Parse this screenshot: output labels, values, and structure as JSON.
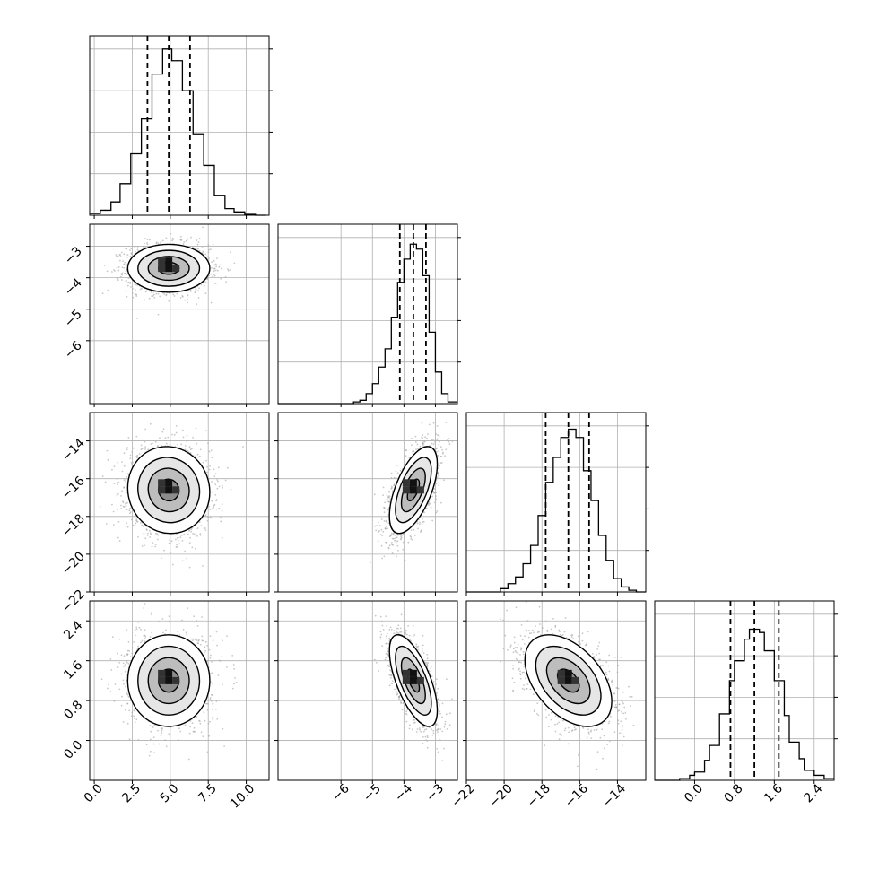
{
  "chart_data": {
    "type": "corner",
    "parameters": [
      {
        "name": "",
        "range": [
          -0.3,
          11.5
        ],
        "ticks": [
          0.0,
          2.5,
          5.0,
          7.5,
          10.0
        ],
        "tick_labels": [
          "0.0",
          "2.5",
          "5.0",
          "7.5",
          "10.0"
        ],
        "quantiles": [
          3.5,
          4.9,
          6.3
        ],
        "hist_edges": [
          -0.3,
          0.4,
          1.1,
          1.7,
          2.4,
          3.1,
          3.8,
          4.5,
          5.1,
          5.8,
          6.5,
          7.2,
          7.9,
          8.6,
          9.2,
          9.9,
          10.6,
          11.3
        ],
        "hist_counts": [
          0.01,
          0.03,
          0.08,
          0.19,
          0.37,
          0.58,
          0.85,
          1.0,
          0.93,
          0.75,
          0.49,
          0.3,
          0.12,
          0.04,
          0.02,
          0.005,
          0.0
        ]
      },
      {
        "name": "",
        "range": [
          -8.0,
          -2.3
        ],
        "ticks": [
          -6,
          -5,
          -4,
          -3
        ],
        "tick_labels": [
          "−6",
          "−5",
          "−4",
          "−3"
        ],
        "quantiles": [
          -4.13,
          -3.7,
          -3.3
        ],
        "hist_edges": [
          -8.0,
          -5.6,
          -5.4,
          -5.2,
          -5.0,
          -4.8,
          -4.6,
          -4.4,
          -4.2,
          -4.0,
          -3.8,
          -3.6,
          -3.4,
          -3.2,
          -3.0,
          -2.8,
          -2.6,
          -2.3
        ],
        "hist_counts": [
          0.0,
          0.01,
          0.02,
          0.06,
          0.12,
          0.22,
          0.33,
          0.52,
          0.73,
          0.87,
          0.96,
          0.93,
          0.77,
          0.43,
          0.19,
          0.06,
          0.01
        ]
      },
      {
        "name": "",
        "range": [
          -22.0,
          -12.5
        ],
        "ticks": [
          -22,
          -20,
          -18,
          -16,
          -14
        ],
        "tick_labels": [
          "−22",
          "−20",
          "−18",
          "−16",
          "−14"
        ],
        "quantiles": [
          -17.8,
          -16.6,
          -15.5
        ],
        "hist_edges": [
          -22.0,
          -20.2,
          -19.8,
          -19.4,
          -19.0,
          -18.6,
          -18.2,
          -17.8,
          -17.4,
          -17.0,
          -16.6,
          -16.2,
          -15.8,
          -15.4,
          -15.0,
          -14.6,
          -14.2,
          -13.8,
          -13.4,
          -13.0,
          -12.5
        ],
        "hist_counts": [
          0.0,
          0.02,
          0.05,
          0.09,
          0.17,
          0.28,
          0.46,
          0.66,
          0.81,
          0.93,
          0.98,
          0.93,
          0.73,
          0.55,
          0.34,
          0.19,
          0.08,
          0.03,
          0.01,
          0.0
        ]
      },
      {
        "name": "",
        "range": [
          -0.8,
          2.8
        ],
        "ticks": [
          0.0,
          0.8,
          1.6,
          2.4
        ],
        "tick_labels": [
          "0.0",
          "0.8",
          "1.6",
          "2.4"
        ],
        "quantiles": [
          0.72,
          1.2,
          1.69
        ],
        "hist_edges": [
          -0.8,
          -0.3,
          -0.1,
          0.0,
          0.2,
          0.3,
          0.5,
          0.7,
          0.8,
          1.0,
          1.1,
          1.3,
          1.4,
          1.6,
          1.8,
          1.9,
          2.1,
          2.2,
          2.4,
          2.6,
          2.8
        ],
        "hist_counts": [
          0.0,
          0.01,
          0.03,
          0.05,
          0.12,
          0.21,
          0.4,
          0.6,
          0.72,
          0.85,
          0.91,
          0.89,
          0.78,
          0.6,
          0.39,
          0.23,
          0.13,
          0.06,
          0.03,
          0.01
        ]
      }
    ],
    "pairs": [
      {
        "row": 1,
        "col": 0,
        "center": [
          4.9,
          -3.7
        ],
        "sigma": [
          1.35,
          0.38
        ],
        "rho": 0.0
      },
      {
        "row": 2,
        "col": 0,
        "center": [
          4.9,
          -16.6
        ],
        "sigma": [
          1.35,
          1.15
        ],
        "rho": -0.05
      },
      {
        "row": 2,
        "col": 1,
        "center": [
          -3.7,
          -16.6
        ],
        "sigma": [
          0.38,
          1.15
        ],
        "rho": 0.6
      },
      {
        "row": 3,
        "col": 0,
        "center": [
          4.9,
          1.2
        ],
        "sigma": [
          1.35,
          0.46
        ],
        "rho": 0.0
      },
      {
        "row": 3,
        "col": 1,
        "center": [
          -3.7,
          1.2
        ],
        "sigma": [
          0.38,
          0.46
        ],
        "rho": -0.65
      },
      {
        "row": 3,
        "col": 2,
        "center": [
          -16.6,
          1.2
        ],
        "sigma": [
          1.15,
          0.46
        ],
        "rho": -0.45
      }
    ],
    "contour_levels_sigma": [
      0.5,
      1.0,
      1.5,
      2.0
    ],
    "grid": true,
    "colors": {
      "line": "#000000",
      "grid": "#b0b0b0",
      "points": "#9a9a9a"
    }
  }
}
